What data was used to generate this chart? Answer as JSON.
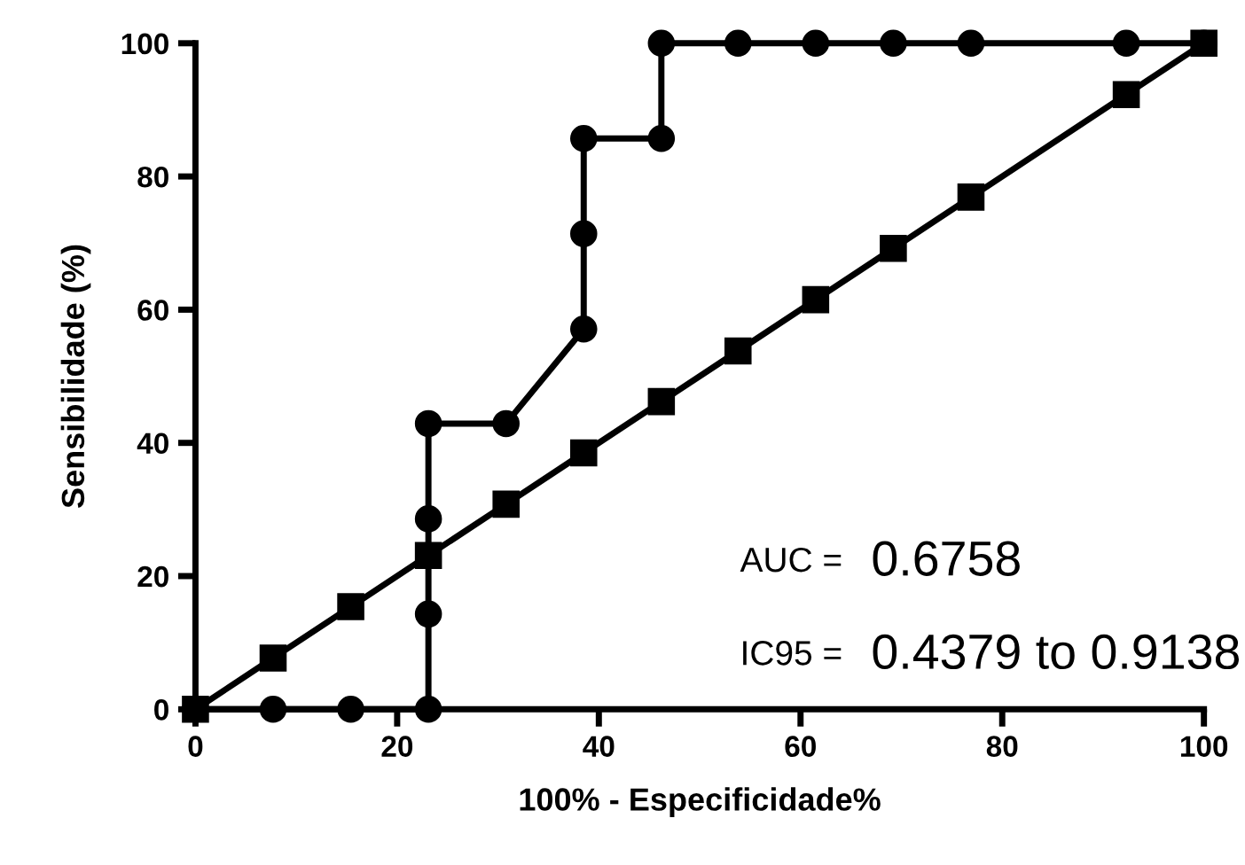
{
  "chart_data": {
    "type": "line",
    "xlabel": "100% - Especificidade%",
    "ylabel": "Sensibilidade (%)",
    "xlim": [
      0,
      100
    ],
    "ylim": [
      0,
      100
    ],
    "xticks": [
      0,
      20,
      40,
      60,
      80,
      100
    ],
    "yticks": [
      0,
      20,
      40,
      60,
      80,
      100
    ],
    "grid": false,
    "legend": false,
    "line_style": "solid",
    "series": [
      {
        "color": "#000000",
        "marker": "circle",
        "x": [
          0,
          7.7,
          15.4,
          23.1,
          23.1,
          23.1,
          23.1,
          30.8,
          38.5,
          38.5,
          38.5,
          46.2,
          46.2,
          53.8,
          61.5,
          69.2,
          76.9,
          92.3,
          100
        ],
        "values": [
          0,
          0,
          0,
          0,
          14.3,
          28.6,
          42.9,
          42.9,
          57.1,
          71.4,
          85.7,
          85.7,
          100,
          100,
          100,
          100,
          100,
          100,
          100
        ]
      },
      {
        "color": "#000000",
        "marker": "square",
        "x": [
          0,
          7.7,
          15.4,
          23.1,
          30.8,
          38.5,
          46.2,
          53.8,
          61.5,
          69.2,
          76.9,
          92.3,
          100
        ],
        "values": [
          0,
          7.7,
          15.4,
          23.1,
          30.8,
          38.5,
          46.2,
          53.8,
          61.5,
          69.2,
          76.9,
          92.3,
          100
        ]
      }
    ],
    "annotations": [
      "AUC =",
      "0.6758",
      "IC95 =",
      "0.4379 to 0.9138"
    ]
  }
}
